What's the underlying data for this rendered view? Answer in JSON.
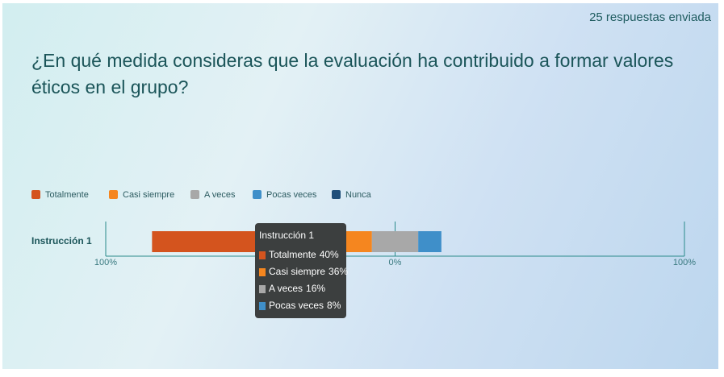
{
  "header": {
    "responses": "25 respuestas enviada",
    "title": "¿En qué medida consideras que la evaluación ha contribuido a formar valores éticos en el grupo?"
  },
  "chart_data": {
    "type": "diverging-bar",
    "categories": [
      "Instrucción 1"
    ],
    "series": [
      {
        "name": "Totalmente",
        "color": "#d4541e",
        "values": [
          40
        ],
        "value_labels": [
          "40%"
        ]
      },
      {
        "name": "Casi siempre",
        "color": "#f5861f",
        "values": [
          36
        ],
        "value_labels": [
          "36%"
        ]
      },
      {
        "name": "A veces",
        "color": "#a8a8a8",
        "values": [
          16
        ],
        "value_labels": [
          "16%"
        ]
      },
      {
        "name": "Pocas veces",
        "color": "#3f8fc9",
        "values": [
          8
        ],
        "value_labels": [
          "8%"
        ]
      },
      {
        "name": "Nunca",
        "color": "#1f4e79",
        "values": [
          0
        ]
      }
    ],
    "xlim": [
      -100,
      100
    ],
    "xticks": [
      {
        "value": -100,
        "label": "100%"
      },
      {
        "value": 0,
        "label": "0%"
      },
      {
        "value": 100,
        "label": "100%"
      }
    ],
    "neutral_series": 2
  }
}
